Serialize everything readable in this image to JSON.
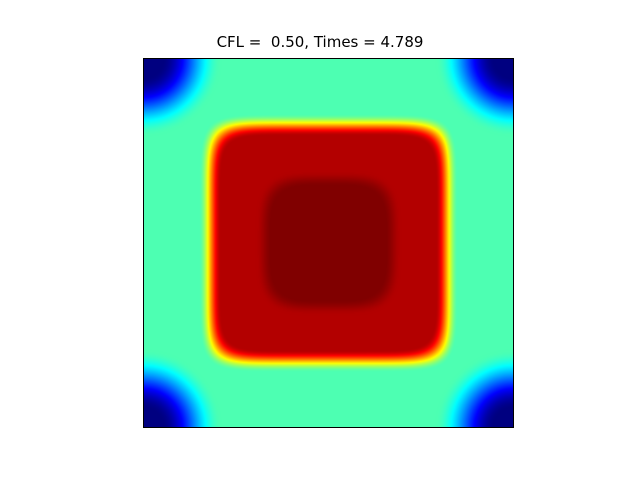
{
  "chart_data": {
    "type": "heatmap",
    "title": "CFL =  0.50, Times = 4.789",
    "xlabel": "",
    "ylabel": "",
    "colormap": "jet",
    "colorbar": false,
    "axes_visible": false,
    "xlim": [
      0,
      1
    ],
    "ylim": [
      0,
      1
    ],
    "grid": false,
    "value_range": [
      0,
      1
    ],
    "field_description": {
      "center_region": {
        "x": [
          0.17,
          0.83
        ],
        "y": [
          0.17,
          0.83
        ],
        "value": 0.95
      },
      "inner_core": {
        "x": [
          0.33,
          0.67
        ],
        "y": [
          0.33,
          0.67
        ],
        "value": 1.0
      },
      "background_band": {
        "value": 0.45
      },
      "corner_minima": [
        {
          "x": 0.0,
          "y": 0.0,
          "value": 0.0
        },
        {
          "x": 1.0,
          "y": 0.0,
          "value": 0.0
        },
        {
          "x": 0.0,
          "y": 1.0,
          "value": 0.0
        },
        {
          "x": 1.0,
          "y": 1.0,
          "value": 0.0
        }
      ]
    }
  }
}
